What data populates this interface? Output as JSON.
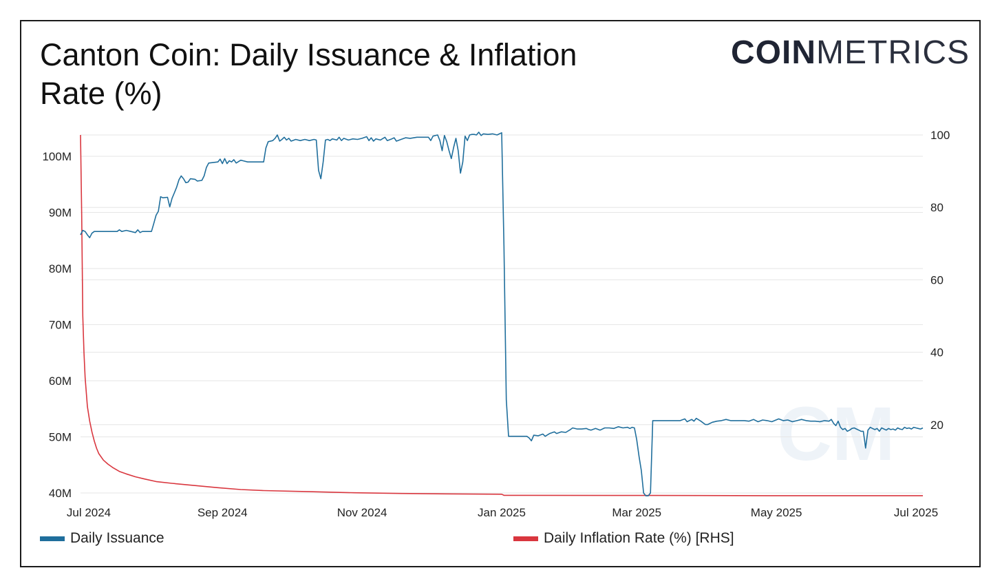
{
  "header": {
    "title_line1": "Canton Coin: Daily Issuance & Inflation",
    "title_line2": "Rate (%)",
    "logo_bold": "COIN",
    "logo_light": "METRICS"
  },
  "colors": {
    "issuance": "#1f6e9c",
    "inflation": "#d9363e",
    "grid": "#e6e6e6",
    "text": "#222222",
    "watermark": "#eef3f8"
  },
  "chart_data": {
    "type": "line",
    "title": "Canton Coin: Daily Issuance & Inflation Rate (%)",
    "x_ticks": [
      "Jul 2024",
      "Sep 2024",
      "Nov 2024",
      "Jan 2025",
      "Mar 2025",
      "May 2025",
      "Jul 2025"
    ],
    "x_tick_index": [
      0,
      62,
      123,
      184,
      243,
      304,
      365
    ],
    "x_range": [
      0,
      368
    ],
    "y_left": {
      "ticks": [
        "40M",
        "50M",
        "60M",
        "70M",
        "80M",
        "90M",
        "100M"
      ],
      "tick_values": [
        40,
        50,
        60,
        70,
        80,
        90,
        100
      ],
      "range": [
        39.5,
        104.5
      ],
      "unit": "M"
    },
    "y_right": {
      "ticks": [
        "20",
        "40",
        "60",
        "80",
        "100"
      ],
      "tick_values": [
        20,
        40,
        60,
        80,
        100
      ],
      "range": [
        0,
        100
      ]
    },
    "grid": true,
    "legend": [
      "Daily Issuance",
      "Daily Inflation Rate (%) [RHS]"
    ],
    "series": [
      {
        "name": "Daily Issuance",
        "axis": "left",
        "unit": "M",
        "points": [
          [
            0,
            86.0
          ],
          [
            1,
            86.8
          ],
          [
            2,
            86.6
          ],
          [
            3,
            86.0
          ],
          [
            4,
            85.5
          ],
          [
            5,
            86.3
          ],
          [
            6,
            86.6
          ],
          [
            10,
            86.6
          ],
          [
            16,
            86.6
          ],
          [
            17,
            86.9
          ],
          [
            18,
            86.6
          ],
          [
            20,
            86.8
          ],
          [
            22,
            86.6
          ],
          [
            24,
            86.4
          ],
          [
            25,
            86.9
          ],
          [
            26,
            86.4
          ],
          [
            27,
            86.6
          ],
          [
            31,
            86.6
          ],
          [
            32,
            88.0
          ],
          [
            33,
            89.5
          ],
          [
            34,
            90.2
          ],
          [
            35,
            92.8
          ],
          [
            36,
            92.6
          ],
          [
            38,
            92.7
          ],
          [
            39,
            91.0
          ],
          [
            40,
            92.5
          ],
          [
            41,
            93.5
          ],
          [
            42,
            94.5
          ],
          [
            43,
            95.8
          ],
          [
            44,
            96.5
          ],
          [
            45,
            96.0
          ],
          [
            46,
            95.3
          ],
          [
            47,
            95.4
          ],
          [
            48,
            96.0
          ],
          [
            50,
            95.9
          ],
          [
            51,
            95.6
          ],
          [
            53,
            95.7
          ],
          [
            54,
            96.5
          ],
          [
            55,
            98.0
          ],
          [
            56,
            98.8
          ],
          [
            60,
            99.0
          ],
          [
            61,
            99.5
          ],
          [
            62,
            98.7
          ],
          [
            63,
            99.6
          ],
          [
            64,
            98.7
          ],
          [
            65,
            99.2
          ],
          [
            66,
            99.0
          ],
          [
            67,
            99.4
          ],
          [
            68,
            98.8
          ],
          [
            70,
            99.3
          ],
          [
            71,
            99.2
          ],
          [
            73,
            99.0
          ],
          [
            80,
            99.0
          ],
          [
            81,
            101.5
          ],
          [
            82,
            102.6
          ],
          [
            84,
            102.8
          ],
          [
            85,
            103.2
          ],
          [
            86,
            103.8
          ],
          [
            87,
            102.7
          ],
          [
            88,
            103.0
          ],
          [
            89,
            103.4
          ],
          [
            90,
            102.9
          ],
          [
            91,
            103.2
          ],
          [
            92,
            102.7
          ],
          [
            94,
            103.0
          ],
          [
            96,
            102.8
          ],
          [
            98,
            103.0
          ],
          [
            100,
            102.8
          ],
          [
            102,
            103.0
          ],
          [
            103,
            102.9
          ],
          [
            104,
            97.5
          ],
          [
            105,
            96.0
          ],
          [
            106,
            99.0
          ],
          [
            107,
            102.9
          ],
          [
            108,
            103.0
          ],
          [
            109,
            102.8
          ],
          [
            110,
            103.1
          ],
          [
            112,
            102.9
          ],
          [
            113,
            103.4
          ],
          [
            114,
            102.8
          ],
          [
            115,
            103.2
          ],
          [
            117,
            102.9
          ],
          [
            119,
            103.1
          ],
          [
            121,
            103.0
          ],
          [
            123,
            103.2
          ],
          [
            125,
            103.5
          ],
          [
            126,
            102.8
          ],
          [
            127,
            103.3
          ],
          [
            128,
            102.7
          ],
          [
            129,
            103.1
          ],
          [
            131,
            102.9
          ],
          [
            133,
            103.4
          ],
          [
            134,
            102.8
          ],
          [
            136,
            103.1
          ],
          [
            137,
            103.3
          ],
          [
            138,
            102.7
          ],
          [
            140,
            103.0
          ],
          [
            142,
            103.3
          ],
          [
            144,
            103.2
          ],
          [
            147,
            103.4
          ],
          [
            150,
            103.4
          ],
          [
            152,
            103.4
          ],
          [
            153,
            102.8
          ],
          [
            154,
            103.6
          ],
          [
            156,
            103.8
          ],
          [
            157,
            102.8
          ],
          [
            158,
            101.0
          ],
          [
            159,
            103.7
          ],
          [
            160,
            102.6
          ],
          [
            161,
            101.0
          ],
          [
            162,
            99.6
          ],
          [
            163,
            101.6
          ],
          [
            164,
            103.2
          ],
          [
            165,
            101.0
          ],
          [
            166,
            97.0
          ],
          [
            167,
            99.0
          ],
          [
            168,
            103.6
          ],
          [
            169,
            102.8
          ],
          [
            170,
            103.8
          ],
          [
            171,
            103.9
          ],
          [
            172,
            103.9
          ],
          [
            173,
            103.8
          ],
          [
            174,
            104.3
          ],
          [
            175,
            103.7
          ],
          [
            176,
            104.0
          ],
          [
            178,
            103.9
          ],
          [
            180,
            104.0
          ],
          [
            182,
            103.8
          ],
          [
            184,
            104.2
          ],
          [
            185,
            84.0
          ],
          [
            186,
            56.6
          ],
          [
            187,
            50.1
          ],
          [
            189,
            50.1
          ],
          [
            193,
            50.1
          ],
          [
            195,
            50.1
          ],
          [
            196,
            49.8
          ],
          [
            197,
            49.3
          ],
          [
            198,
            50.3
          ],
          [
            200,
            50.2
          ],
          [
            202,
            50.5
          ],
          [
            203,
            50.1
          ],
          [
            205,
            50.6
          ],
          [
            207,
            50.9
          ],
          [
            208,
            50.6
          ],
          [
            210,
            50.9
          ],
          [
            212,
            50.8
          ],
          [
            214,
            51.3
          ],
          [
            215,
            51.6
          ],
          [
            217,
            51.4
          ],
          [
            219,
            51.4
          ],
          [
            221,
            51.5
          ],
          [
            222,
            51.3
          ],
          [
            223,
            51.2
          ],
          [
            225,
            51.5
          ],
          [
            227,
            51.2
          ],
          [
            229,
            51.6
          ],
          [
            231,
            51.6
          ],
          [
            233,
            51.5
          ],
          [
            235,
            51.8
          ],
          [
            237,
            51.6
          ],
          [
            239,
            51.7
          ],
          [
            240,
            51.5
          ],
          [
            241,
            51.7
          ],
          [
            242,
            51.6
          ],
          [
            243,
            49.5
          ],
          [
            244,
            46.5
          ],
          [
            245,
            44.0
          ],
          [
            246,
            40.0
          ],
          [
            247,
            39.5
          ],
          [
            248,
            39.5
          ],
          [
            249,
            40.0
          ],
          [
            250,
            52.9
          ],
          [
            251,
            52.9
          ],
          [
            262,
            52.9
          ],
          [
            264,
            53.2
          ],
          [
            265,
            52.7
          ],
          [
            267,
            53.1
          ],
          [
            268,
            52.8
          ],
          [
            269,
            53.3
          ],
          [
            271,
            52.8
          ],
          [
            273,
            52.2
          ],
          [
            274,
            52.2
          ],
          [
            276,
            52.6
          ],
          [
            278,
            52.8
          ],
          [
            280,
            52.9
          ],
          [
            282,
            53.1
          ],
          [
            284,
            52.9
          ],
          [
            286,
            52.9
          ],
          [
            288,
            52.9
          ],
          [
            290,
            52.9
          ],
          [
            292,
            52.8
          ],
          [
            294,
            53.1
          ],
          [
            296,
            52.7
          ],
          [
            298,
            53.0
          ],
          [
            300,
            52.9
          ],
          [
            302,
            52.7
          ],
          [
            305,
            53.2
          ],
          [
            307,
            52.9
          ],
          [
            309,
            53.0
          ],
          [
            311,
            52.7
          ],
          [
            313,
            52.9
          ],
          [
            315,
            53.1
          ],
          [
            317,
            52.9
          ],
          [
            319,
            52.8
          ],
          [
            321,
            52.8
          ],
          [
            323,
            52.7
          ],
          [
            325,
            52.9
          ],
          [
            327,
            52.8
          ],
          [
            328,
            53.1
          ],
          [
            329,
            52.4
          ],
          [
            330,
            52.0
          ],
          [
            331,
            52.8
          ],
          [
            332,
            51.7
          ],
          [
            333,
            51.3
          ],
          [
            334,
            51.5
          ],
          [
            335,
            51.0
          ],
          [
            336,
            51.2
          ],
          [
            337,
            51.5
          ],
          [
            338,
            51.6
          ],
          [
            339,
            51.4
          ],
          [
            340,
            51.2
          ],
          [
            341,
            51.0
          ],
          [
            342,
            51.0
          ],
          [
            343,
            48.0
          ],
          [
            344,
            51.2
          ],
          [
            345,
            51.7
          ],
          [
            346,
            51.5
          ],
          [
            347,
            51.3
          ],
          [
            348,
            51.5
          ],
          [
            349,
            51.0
          ],
          [
            350,
            51.6
          ],
          [
            351,
            51.4
          ],
          [
            352,
            51.2
          ],
          [
            353,
            51.5
          ],
          [
            354,
            51.3
          ],
          [
            355,
            51.4
          ],
          [
            356,
            51.2
          ],
          [
            357,
            51.6
          ],
          [
            358,
            51.4
          ],
          [
            359,
            51.3
          ],
          [
            360,
            51.7
          ],
          [
            361,
            51.5
          ],
          [
            362,
            51.6
          ],
          [
            363,
            51.4
          ],
          [
            364,
            51.7
          ],
          [
            365,
            51.6
          ],
          [
            366,
            51.5
          ],
          [
            367,
            51.4
          ],
          [
            368,
            51.6
          ]
        ]
      },
      {
        "name": "Daily Inflation Rate (%) [RHS]",
        "axis": "right",
        "unit": "%",
        "points": [
          [
            0,
            100
          ],
          [
            0.5,
            78
          ],
          [
            1,
            50
          ],
          [
            1.5,
            40
          ],
          [
            2,
            33
          ],
          [
            3,
            25
          ],
          [
            4,
            21
          ],
          [
            5,
            18
          ],
          [
            6,
            15.5
          ],
          [
            7,
            13.5
          ],
          [
            8,
            12.0
          ],
          [
            10,
            10.2
          ],
          [
            12,
            9.1
          ],
          [
            14,
            8.2
          ],
          [
            17,
            7.1
          ],
          [
            20,
            6.4
          ],
          [
            24,
            5.6
          ],
          [
            28,
            5.0
          ],
          [
            33,
            4.3
          ],
          [
            40,
            3.8
          ],
          [
            50,
            3.2
          ],
          [
            60,
            2.6
          ],
          [
            70,
            2.1
          ],
          [
            80,
            1.8
          ],
          [
            100,
            1.5
          ],
          [
            120,
            1.2
          ],
          [
            140,
            1.0
          ],
          [
            160,
            0.9
          ],
          [
            184,
            0.8
          ],
          [
            185,
            0.5
          ],
          [
            250,
            0.45
          ],
          [
            300,
            0.4
          ],
          [
            368,
            0.4
          ]
        ]
      }
    ]
  }
}
